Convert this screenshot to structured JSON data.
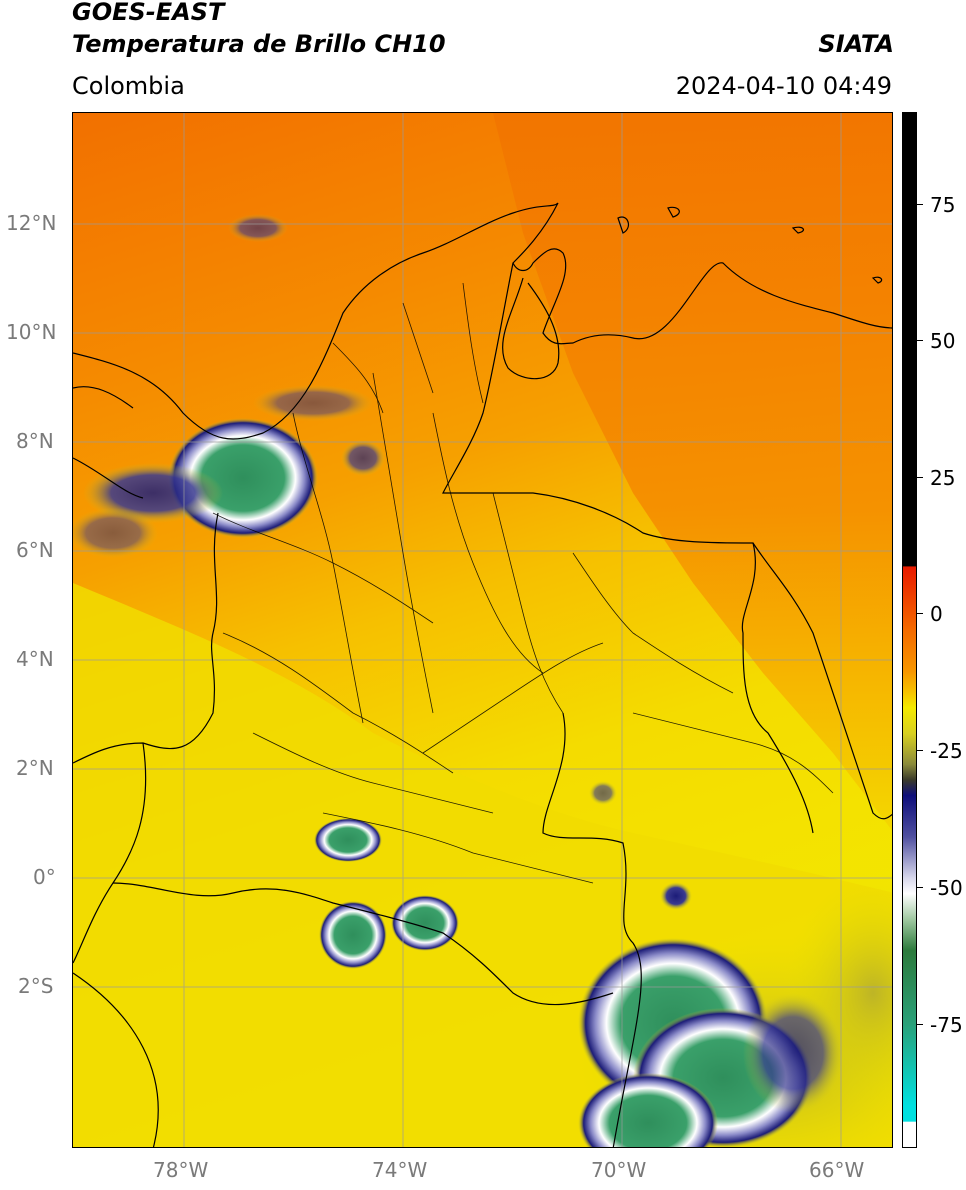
{
  "header": {
    "title_line1": "GOES-EAST",
    "title_line2": "Temperatura de Brillo CH10",
    "region": "Colombia",
    "source": "SIATA",
    "datetime": "2024-04-10 04:49"
  },
  "map": {
    "lat_ticks": [
      "12°N",
      "10°N",
      "8°N",
      "6°N",
      "4°N",
      "2°N",
      "0°",
      "2°S"
    ],
    "lon_ticks": [
      "78°W",
      "74°W",
      "70°W",
      "66°W"
    ],
    "colors": {
      "background_orange": "#f58a00",
      "background_yellow": "#f4e000",
      "dark_orange": "#ef6a00",
      "olive": "#b8b82a",
      "navy": "#1c1c78",
      "white": "#ffffff",
      "green": "#3a9a6a",
      "teal": "#2cb89a",
      "border": "#000000",
      "grid": "#9a9a9a"
    }
  },
  "colorbar": {
    "ticks": [
      "75",
      "50",
      "25",
      "0",
      "-25",
      "-50",
      "-75"
    ],
    "stops": [
      {
        "color": "#000000",
        "label": "top"
      },
      {
        "color": "#e81a00",
        "label": "red"
      },
      {
        "color": "#f79600",
        "label": "orange"
      },
      {
        "color": "#f4ea00",
        "label": "yellow"
      },
      {
        "color": "#5b5b1e",
        "label": "olive"
      },
      {
        "color": "#0e0e7a",
        "label": "navy"
      },
      {
        "color": "#ffffff",
        "label": "white"
      },
      {
        "color": "#2c7a3c",
        "label": "green"
      },
      {
        "color": "#00e0e0",
        "label": "cyan"
      }
    ]
  }
}
